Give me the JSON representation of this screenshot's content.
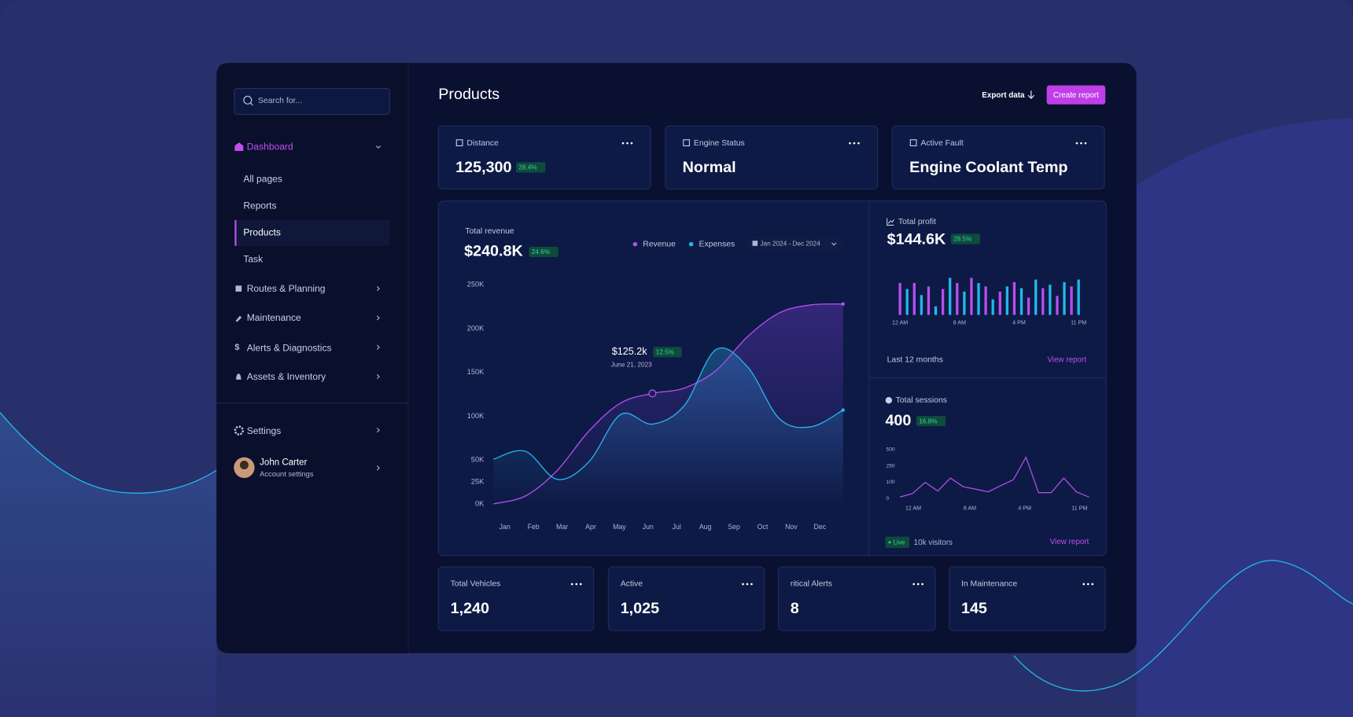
{
  "sidebar": {
    "search_placeholder": "Search for...",
    "nav": [
      "Dashboard",
      "All pages",
      "Reports",
      "Products",
      "Task",
      "Routes & Planning",
      "Maintenance",
      "Alerts & Diagnostics",
      "Assets & Inventory"
    ],
    "settings": "Settings",
    "user": {
      "name": "John Carter",
      "subtitle": "Account settings"
    }
  },
  "header": {
    "title": "Products",
    "export": "Export data",
    "create": "Create report"
  },
  "cards": [
    {
      "label": "Distance",
      "value": "125,300",
      "change": "28.4%"
    },
    {
      "label": "Engine Status",
      "value": "Normal"
    },
    {
      "label": "Active Fault",
      "value": "Engine Coolant Temp"
    }
  ],
  "revenue_chart": {
    "type": "line",
    "title": "Total revenue",
    "value": "$240.8K",
    "change": "24.6%",
    "date_range": "Jan 2024 - Dec 2024",
    "categories": [
      "Jan",
      "Feb",
      "Mar",
      "Apr",
      "May",
      "Jun",
      "Jul",
      "Aug",
      "Sep",
      "Oct",
      "Nov",
      "Dec"
    ],
    "series": [
      {
        "name": "Revenue",
        "color": "#b64ff0",
        "values": [
          0,
          9,
          38,
          83,
          115,
          126,
          132,
          152,
          191,
          218,
          227,
          228
        ]
      },
      {
        "name": "Expenses",
        "color": "#22b8ec",
        "values": [
          51,
          60,
          28,
          48,
          102,
          91,
          112,
          176,
          156,
          97,
          88,
          107
        ]
      }
    ],
    "ylim": [
      0,
      250
    ],
    "yticks": [
      {
        "value": 0,
        "label": "0K"
      },
      {
        "value": 25,
        "label": "25K"
      },
      {
        "value": 50,
        "label": "50K"
      },
      {
        "value": 100,
        "label": "100K"
      },
      {
        "value": 150,
        "label": "150K"
      },
      {
        "value": 200,
        "label": "200K"
      },
      {
        "value": 250,
        "label": "250K"
      }
    ],
    "tooltip": {
      "value": "$125.2k",
      "change": "12.5%",
      "date": "June 21, 2023"
    }
  },
  "profit_panel": {
    "title": "Total profit",
    "value": "$144.6K",
    "change": "28.5%",
    "chart": {
      "type": "bar",
      "series": [
        {
          "color": "#b64ff0",
          "values": [
            37,
            37,
            33,
            30,
            37,
            43,
            33,
            27,
            38,
            20,
            31,
            22,
            33
          ]
        },
        {
          "color": "#22b8ec",
          "values": [
            30,
            23,
            10,
            43,
            27,
            37,
            18,
            33,
            31,
            41,
            35,
            38,
            41
          ]
        }
      ],
      "ylim": [
        0,
        50
      ],
      "x_labels": [
        "12 AM",
        "8 AM",
        "4 PM",
        "11 PM"
      ]
    },
    "footer": "Last 12 months",
    "link": "View report"
  },
  "sessions_panel": {
    "title": "Total sessions",
    "value": "400",
    "change": "16.8%",
    "chart": {
      "type": "line",
      "color": "#b64ff0",
      "values": [
        10,
        32,
        100,
        47,
        139,
        74,
        58,
        42,
        80,
        124,
        382,
        37,
        37,
        139,
        42,
        10
      ],
      "ylim": [
        0,
        500
      ],
      "yticks": [
        0,
        100,
        250,
        500
      ],
      "x_labels": [
        "12 AM",
        "8 AM",
        "4 PM",
        "11 PM"
      ]
    },
    "live": "Live",
    "visitors": "10k visitors",
    "link": "View report"
  },
  "bottom_cards": [
    {
      "label": "Total Vehicles",
      "value": "1,240"
    },
    {
      "label": "Active",
      "value": "1,025"
    },
    {
      "label": "ritical Alerts",
      "value": "8"
    },
    {
      "label": "In Maintenance",
      "value": "145"
    }
  ]
}
